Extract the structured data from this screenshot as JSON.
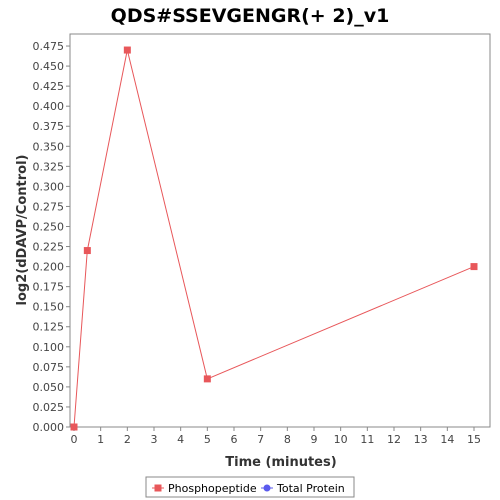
{
  "chart_data": {
    "type": "line",
    "title": "QDS#SSEVGENGR(+ 2)_v1",
    "xlabel": "Time (minutes)",
    "ylabel": "log2(dDAVP/Control)",
    "xlim": [
      0,
      15.6
    ],
    "ylim": [
      0,
      0.49
    ],
    "x_ticks": [
      0,
      1,
      2,
      3,
      4,
      5,
      6,
      7,
      8,
      9,
      10,
      11,
      12,
      13,
      14,
      15
    ],
    "x_tick_labels": [
      "0",
      "1",
      "2",
      "3",
      "4",
      "5",
      "6",
      "7",
      "8",
      "9",
      "10",
      "11",
      "12",
      "13",
      "14",
      "15"
    ],
    "y_ticks": [
      0,
      0.025,
      0.05,
      0.075,
      0.1,
      0.125,
      0.15,
      0.175,
      0.2,
      0.225,
      0.25,
      0.275,
      0.3,
      0.325,
      0.35,
      0.375,
      0.4,
      0.425,
      0.45,
      0.475
    ],
    "y_tick_labels": [
      "0.000",
      "0.025",
      "0.050",
      "0.075",
      "0.100",
      "0.125",
      "0.150",
      "0.175",
      "0.200",
      "0.225",
      "0.250",
      "0.275",
      "0.300",
      "0.325",
      "0.350",
      "0.375",
      "0.400",
      "0.425",
      "0.450",
      "0.475"
    ],
    "grid": false,
    "legend_position": "bottom-center",
    "series": [
      {
        "name": "Phosphopeptide",
        "color": "#e8575a",
        "marker": "square",
        "x": [
          0,
          0.5,
          2,
          5,
          15
        ],
        "y": [
          0.0,
          0.22,
          0.47,
          0.06,
          0.2
        ]
      },
      {
        "name": "Total Protein",
        "color": "#5a5aee",
        "marker": "circle",
        "x": [],
        "y": []
      }
    ]
  }
}
